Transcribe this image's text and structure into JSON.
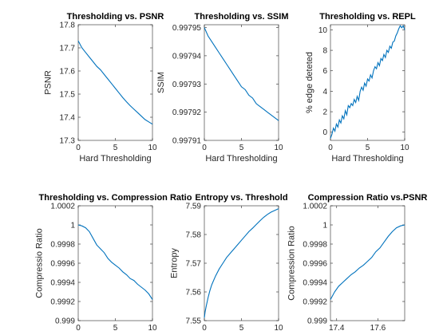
{
  "figure": {
    "background": "#ffffff",
    "line_color": "#0072BD"
  },
  "chart_data": [
    {
      "type": "line",
      "title": "Thresholding vs. PSNR",
      "xlabel": "Hard Thresholding",
      "ylabel": "PSNR",
      "xlim": [
        0,
        10
      ],
      "ylim": [
        17.3,
        17.8
      ],
      "xticks": [
        0,
        5,
        10
      ],
      "xticklabels": [
        "0",
        "5",
        "10"
      ],
      "yticks": [
        17.3,
        17.4,
        17.5,
        17.6,
        17.7,
        17.8
      ],
      "yticklabels": [
        "17.3",
        "17.4",
        "17.5",
        "17.6",
        "17.7",
        "17.8"
      ],
      "series": [
        {
          "x": [
            0,
            0.5,
            1,
            1.5,
            2,
            2.5,
            3,
            3.5,
            4,
            4.5,
            5,
            5.5,
            6,
            6.5,
            7,
            7.5,
            8,
            8.5,
            9,
            9.5,
            10
          ],
          "y": [
            17.73,
            17.7,
            17.68,
            17.66,
            17.64,
            17.62,
            17.605,
            17.585,
            17.565,
            17.545,
            17.525,
            17.505,
            17.485,
            17.467,
            17.45,
            17.435,
            17.42,
            17.405,
            17.39,
            17.38,
            17.37
          ]
        }
      ]
    },
    {
      "type": "line",
      "title": "Thresholding vs. SSIM",
      "xlabel": "Hard Thresholding",
      "ylabel": "SSIM",
      "xlim": [
        0,
        10
      ],
      "ylim": [
        0.99791,
        0.997951
      ],
      "xticks": [
        0,
        5,
        10
      ],
      "xticklabels": [
        "0",
        "5",
        "10"
      ],
      "yticks": [
        0.99791,
        0.99792,
        0.99793,
        0.99794,
        0.99795
      ],
      "yticklabels": [
        "0.99791",
        "0.99792",
        "0.99793",
        "0.99794",
        "0.99795"
      ],
      "series": [
        {
          "x": [
            0,
            0.5,
            1,
            1.5,
            2,
            2.5,
            3,
            3.5,
            4,
            4.5,
            5,
            5.5,
            6,
            6.5,
            7,
            7.5,
            8,
            8.5,
            9,
            9.5,
            10
          ],
          "y": [
            0.99795,
            0.997947,
            0.997945,
            0.997943,
            0.997941,
            0.997939,
            0.997937,
            0.997935,
            0.997933,
            0.997931,
            0.997929,
            0.997928,
            0.997926,
            0.997925,
            0.997923,
            0.997922,
            0.997921,
            0.99792,
            0.997919,
            0.997918,
            0.997917
          ]
        }
      ]
    },
    {
      "type": "line",
      "title": "Thresholding vs. REPL",
      "xlabel": "Hard Thresholding",
      "ylabel": "% edge deteted",
      "xlim": [
        0,
        10
      ],
      "ylim": [
        -0.8,
        10.5
      ],
      "xticks": [
        0,
        5,
        10
      ],
      "xticklabels": [
        "0",
        "5",
        "10"
      ],
      "yticks": [
        0,
        2,
        4,
        6,
        8,
        10
      ],
      "yticklabels": [
        "0",
        "2",
        "4",
        "6",
        "8",
        "10"
      ],
      "series": [
        {
          "x": [
            0,
            0.2,
            0.4,
            0.6,
            0.8,
            1.0,
            1.2,
            1.4,
            1.6,
            1.8,
            2.0,
            2.2,
            2.4,
            2.6,
            2.8,
            3.0,
            3.2,
            3.4,
            3.6,
            3.8,
            4.0,
            4.2,
            4.4,
            4.6,
            4.8,
            5.0,
            5.2,
            5.4,
            5.6,
            5.8,
            6.0,
            6.2,
            6.4,
            6.6,
            6.8,
            7.0,
            7.2,
            7.4,
            7.6,
            7.8,
            8.0,
            8.2,
            8.4,
            8.6,
            8.8,
            9.0,
            9.2,
            9.4,
            9.6,
            9.8,
            10.0
          ],
          "y": [
            -0.6,
            -0.2,
            0.4,
            0.1,
            0.8,
            0.5,
            1.2,
            0.9,
            1.6,
            1.3,
            2.1,
            1.7,
            2.6,
            2.4,
            2.8,
            2.6,
            3.2,
            2.9,
            3.5,
            3.1,
            4.0,
            4.4,
            4.1,
            4.8,
            4.5,
            5.2,
            5.0,
            5.6,
            5.3,
            6.0,
            6.4,
            6.2,
            6.8,
            6.5,
            7.2,
            7.0,
            7.6,
            7.3,
            8.0,
            7.8,
            8.4,
            8.2,
            8.8,
            8.9,
            9.4,
            9.7,
            10.1,
            10.4,
            10.2,
            10.4,
            10.0
          ]
        }
      ]
    },
    {
      "type": "line",
      "title": "Thresholding vs. Compression Ratio",
      "xlabel": "Hard Thresholding",
      "ylabel": "Compressio Ratio",
      "xlim": [
        0,
        10
      ],
      "ylim": [
        0.999,
        1.0002
      ],
      "xticks": [
        0,
        5,
        10
      ],
      "xticklabels": [
        "0",
        "5",
        "10"
      ],
      "yticks": [
        0.999,
        0.9992,
        0.9994,
        0.9996,
        0.9998,
        1.0,
        1.0002
      ],
      "yticklabels": [
        "0.999",
        "0.9992",
        "0.9994",
        "0.9996",
        "0.9998",
        "1",
        "1.0002"
      ],
      "series": [
        {
          "x": [
            0,
            0.5,
            1,
            1.5,
            2,
            2.5,
            3,
            3.5,
            4,
            4.5,
            5,
            5.5,
            6,
            6.5,
            7,
            7.5,
            8,
            8.5,
            9,
            9.5,
            10
          ],
          "y": [
            1.0,
            0.99999,
            0.99997,
            0.99993,
            0.99986,
            0.99979,
            0.99975,
            0.99971,
            0.99965,
            0.99961,
            0.99958,
            0.99955,
            0.99951,
            0.99948,
            0.99944,
            0.99942,
            0.99938,
            0.99935,
            0.99932,
            0.99928,
            0.99922
          ]
        }
      ]
    },
    {
      "type": "line",
      "title": "Entropy vs. Threshold",
      "xlabel": "Hard Threshold",
      "ylabel": "Entropy",
      "xlim": [
        0,
        10
      ],
      "ylim": [
        7.55,
        7.59
      ],
      "xticks": [
        0,
        5,
        10
      ],
      "xticklabels": [
        "0",
        "5",
        "10"
      ],
      "yticks": [
        7.55,
        7.56,
        7.57,
        7.58,
        7.59
      ],
      "yticklabels": [
        "7.55",
        "7.56",
        "7.57",
        "7.58",
        "7.59"
      ],
      "series": [
        {
          "x": [
            0,
            0.1,
            0.25,
            0.5,
            0.75,
            1,
            1.5,
            2,
            2.5,
            3,
            3.5,
            4,
            4.5,
            5,
            5.5,
            6,
            6.5,
            7,
            7.5,
            8,
            8.5,
            9,
            9.5,
            10
          ],
          "y": [
            7.551,
            7.553,
            7.555,
            7.558,
            7.5605,
            7.5625,
            7.5655,
            7.568,
            7.57,
            7.572,
            7.5735,
            7.575,
            7.5765,
            7.578,
            7.5795,
            7.581,
            7.5822,
            7.5835,
            7.5848,
            7.586,
            7.587,
            7.5878,
            7.5884,
            7.589
          ]
        }
      ]
    },
    {
      "type": "line",
      "title": "Compression Ratio vs.PSNR",
      "xlabel": "PSNR",
      "ylabel": "Compression Ratio",
      "xlim": [
        17.37,
        17.73
      ],
      "ylim": [
        0.999,
        1.0002
      ],
      "xticks": [
        17.4,
        17.6
      ],
      "xticklabels": [
        "17.4",
        "17.6"
      ],
      "yticks": [
        0.999,
        0.9992,
        0.9994,
        0.9996,
        0.9998,
        1.0,
        1.0002
      ],
      "yticklabels": [
        "0.999",
        "0.9992",
        "0.9994",
        "0.9996",
        "0.9998",
        "1",
        "1.0002"
      ],
      "series": [
        {
          "x": [
            17.37,
            17.39,
            17.41,
            17.43,
            17.45,
            17.47,
            17.49,
            17.51,
            17.53,
            17.55,
            17.57,
            17.59,
            17.61,
            17.63,
            17.65,
            17.67,
            17.69,
            17.71,
            17.73
          ],
          "y": [
            0.99922,
            0.9993,
            0.99936,
            0.9994,
            0.99944,
            0.99948,
            0.99951,
            0.99955,
            0.99958,
            0.99962,
            0.99966,
            0.99972,
            0.99976,
            0.99982,
            0.99988,
            0.99993,
            0.99997,
            0.99999,
            1.0
          ]
        }
      ]
    }
  ]
}
